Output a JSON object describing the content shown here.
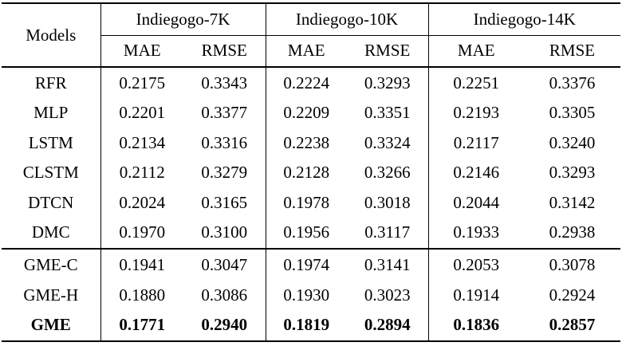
{
  "table": {
    "models_header": "Models",
    "groups": [
      {
        "label": "Indiegogo-7K"
      },
      {
        "label": "Indiegogo-10K"
      },
      {
        "label": "Indiegogo-14K"
      }
    ],
    "metrics": [
      "MAE",
      "RMSE"
    ],
    "rows": [
      {
        "model": "RFR",
        "values": [
          "0.2175",
          "0.3343",
          "0.2224",
          "0.3293",
          "0.2251",
          "0.3376"
        ],
        "bold": false,
        "section_break_after": false
      },
      {
        "model": "MLP",
        "values": [
          "0.2201",
          "0.3377",
          "0.2209",
          "0.3351",
          "0.2193",
          "0.3305"
        ],
        "bold": false,
        "section_break_after": false
      },
      {
        "model": "LSTM",
        "values": [
          "0.2134",
          "0.3316",
          "0.2238",
          "0.3324",
          "0.2117",
          "0.3240"
        ],
        "bold": false,
        "section_break_after": false
      },
      {
        "model": "CLSTM",
        "values": [
          "0.2112",
          "0.3279",
          "0.2128",
          "0.3266",
          "0.2146",
          "0.3293"
        ],
        "bold": false,
        "section_break_after": false
      },
      {
        "model": "DTCN",
        "values": [
          "0.2024",
          "0.3165",
          "0.1978",
          "0.3018",
          "0.2044",
          "0.3142"
        ],
        "bold": false,
        "section_break_after": false
      },
      {
        "model": "DMC",
        "values": [
          "0.1970",
          "0.3100",
          "0.1956",
          "0.3117",
          "0.1933",
          "0.2938"
        ],
        "bold": false,
        "section_break_after": true
      },
      {
        "model": "GME-C",
        "values": [
          "0.1941",
          "0.3047",
          "0.1974",
          "0.3141",
          "0.2053",
          "0.3078"
        ],
        "bold": false,
        "section_break_after": false
      },
      {
        "model": "GME-H",
        "values": [
          "0.1880",
          "0.3086",
          "0.1930",
          "0.3023",
          "0.1914",
          "0.2924"
        ],
        "bold": false,
        "section_break_after": false
      },
      {
        "model": "GME",
        "values": [
          "0.1771",
          "0.2940",
          "0.1819",
          "0.2894",
          "0.1836",
          "0.2857"
        ],
        "bold": true,
        "section_break_after": false
      }
    ],
    "colors": {
      "text": "#000000",
      "background": "#ffffff",
      "rule": "#000000"
    }
  }
}
